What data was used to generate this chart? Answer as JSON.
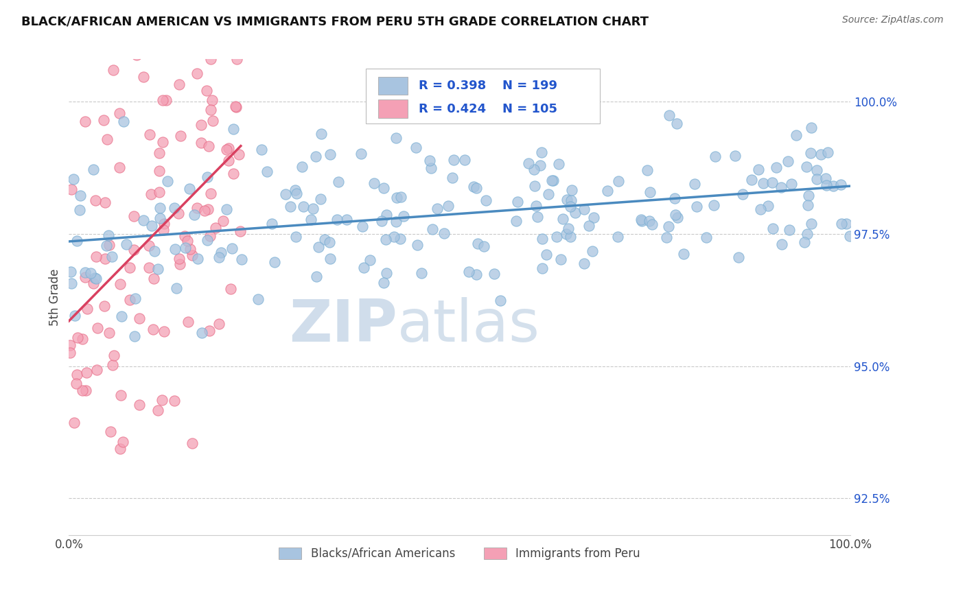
{
  "title": "BLACK/AFRICAN AMERICAN VS IMMIGRANTS FROM PERU 5TH GRADE CORRELATION CHART",
  "source": "Source: ZipAtlas.com",
  "ylabel": "5th Grade",
  "y_ticks": [
    92.5,
    95.0,
    97.5,
    100.0
  ],
  "y_tick_labels": [
    "92.5%",
    "95.0%",
    "97.5%",
    "100.0%"
  ],
  "blue_color": "#a8c4e0",
  "blue_edge_color": "#7aafd4",
  "pink_color": "#f4a0b5",
  "pink_edge_color": "#e8708a",
  "blue_line_color": "#4a8abf",
  "pink_line_color": "#d94060",
  "R_blue": 0.398,
  "N_blue": 199,
  "R_pink": 0.424,
  "N_pink": 105,
  "legend_labels": [
    "Blacks/African Americans",
    "Immigrants from Peru"
  ],
  "watermark_zip": "ZIP",
  "watermark_atlas": "atlas",
  "title_color": "#111111",
  "stat_color": "#2255cc",
  "background_color": "#ffffff",
  "grid_color": "#bbbbbb",
  "xlim": [
    0.0,
    100.0
  ],
  "ylim": [
    91.8,
    100.8
  ],
  "blue_seed": 12,
  "pink_seed": 99
}
